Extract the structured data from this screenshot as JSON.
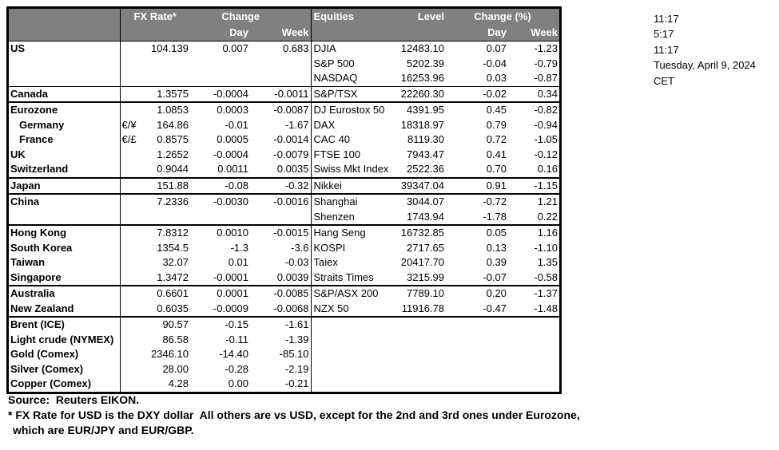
{
  "table": {
    "headers": {
      "fx_rate": "FX Rate*",
      "change": "Change",
      "day": "Day",
      "week": "Week",
      "equities": "Equities",
      "level": "Level",
      "change_pct": "Change (%)"
    },
    "rows": [
      {
        "country": "US",
        "pair": "",
        "fx": "104.139",
        "fx_day": "0.007",
        "fx_week": "0.683",
        "equity": "DJIA",
        "level": "12483.10",
        "eq_day": "0.07",
        "eq_week": "-1.23",
        "indent": false,
        "sep": "none"
      },
      {
        "country": "",
        "pair": "",
        "fx": "",
        "fx_day": "",
        "fx_week": "",
        "equity": "S&P 500",
        "level": "5202.39",
        "eq_day": "-0.04",
        "eq_week": "-0.79",
        "indent": false,
        "sep": "none"
      },
      {
        "country": "",
        "pair": "",
        "fx": "",
        "fx_day": "",
        "fx_week": "",
        "equity": "NASDAQ",
        "level": "16253.96",
        "eq_day": "0.03",
        "eq_week": "-0.87",
        "indent": false,
        "sep": "none"
      },
      {
        "country": "Canada",
        "pair": "",
        "fx": "1.3575",
        "fx_day": "-0.0004",
        "fx_week": "-0.0011",
        "equity": "S&P/TSX",
        "level": "22260.30",
        "eq_day": "-0.02",
        "eq_week": "0.34",
        "indent": false,
        "sep": "thin"
      },
      {
        "country": "Eurozone",
        "pair": "",
        "fx": "1.0853",
        "fx_day": "0.0003",
        "fx_week": "-0.0087",
        "equity": "DJ Eurostox 50",
        "level": "4391.95",
        "eq_day": "0.45",
        "eq_week": "-0.82",
        "indent": false,
        "sep": "thick"
      },
      {
        "country": "Germany",
        "pair": "€/¥",
        "fx": "164.86",
        "fx_day": "-0.01",
        "fx_week": "-1.67",
        "equity": "DAX",
        "level": "18318.97",
        "eq_day": "0.79",
        "eq_week": "-0.94",
        "indent": true,
        "sep": "none"
      },
      {
        "country": "France",
        "pair": "€/£",
        "fx": "0.8575",
        "fx_day": "0.0005",
        "fx_week": "-0.0014",
        "equity": "CAC 40",
        "level": "8119.30",
        "eq_day": "0.72",
        "eq_week": "-1.05",
        "indent": true,
        "sep": "none"
      },
      {
        "country": "UK",
        "pair": "",
        "fx": "1.2652",
        "fx_day": "-0.0004",
        "fx_week": "-0.0079",
        "equity": "FTSE 100",
        "level": "7943.47",
        "eq_day": "0.41",
        "eq_week": "-0.12",
        "indent": false,
        "sep": "none"
      },
      {
        "country": "Switzerland",
        "pair": "",
        "fx": "0.9044",
        "fx_day": "0.0011",
        "fx_week": "0.0035",
        "equity": "Swiss Mkt Index",
        "level": "2522.36",
        "eq_day": "0.70",
        "eq_week": "0.16",
        "indent": false,
        "sep": "none"
      },
      {
        "country": "Japan",
        "pair": "",
        "fx": "151.88",
        "fx_day": "-0.08",
        "fx_week": "-0.32",
        "equity": "Nikkei",
        "level": "39347.04",
        "eq_day": "0.91",
        "eq_week": "-1.15",
        "indent": false,
        "sep": "thick"
      },
      {
        "country": "China",
        "pair": "",
        "fx": "7.2336",
        "fx_day": "-0.0030",
        "fx_week": "-0.0016",
        "equity": "Shanghai",
        "level": "3044.07",
        "eq_day": "-0.72",
        "eq_week": "1.21",
        "indent": false,
        "sep": "thick"
      },
      {
        "country": "",
        "pair": "",
        "fx": "",
        "fx_day": "",
        "fx_week": "",
        "equity": "Shenzen",
        "level": "1743.94",
        "eq_day": "-1.78",
        "eq_week": "0.22",
        "indent": false,
        "sep": "none"
      },
      {
        "country": "Hong Kong",
        "pair": "",
        "fx": "7.8312",
        "fx_day": "0.0010",
        "fx_week": "-0.0015",
        "equity": "Hang Seng",
        "level": "16732.85",
        "eq_day": "0.05",
        "eq_week": "1.16",
        "indent": false,
        "sep": "thick"
      },
      {
        "country": "South Korea",
        "pair": "",
        "fx": "1354.5",
        "fx_day": "-1.3",
        "fx_week": "-3.6",
        "equity": "KOSPI",
        "level": "2717.65",
        "eq_day": "0.13",
        "eq_week": "-1.10",
        "indent": false,
        "sep": "none"
      },
      {
        "country": "Taiwan",
        "pair": "",
        "fx": "32.07",
        "fx_day": "0.01",
        "fx_week": "-0.03",
        "equity": "Taiex",
        "level": "20417.70",
        "eq_day": "0.39",
        "eq_week": "1.35",
        "indent": false,
        "sep": "none"
      },
      {
        "country": "Singapore",
        "pair": "",
        "fx": "1.3472",
        "fx_day": "-0.0001",
        "fx_week": "0.0039",
        "equity": "Straits Times",
        "level": "3215.99",
        "eq_day": "-0.07",
        "eq_week": "-0.58",
        "indent": false,
        "sep": "none"
      },
      {
        "country": "Australia",
        "pair": "",
        "fx": "0.6601",
        "fx_day": "0.0001",
        "fx_week": "-0.0085",
        "equity": "S&P/ASX  200",
        "level": "7789.10",
        "eq_day": "0.20",
        "eq_week": "-1.37",
        "indent": false,
        "sep": "thick"
      },
      {
        "country": "New Zealand",
        "pair": "",
        "fx": "0.6035",
        "fx_day": "-0.0009",
        "fx_week": "-0.0068",
        "equity": "NZX 50",
        "level": "11916.78",
        "eq_day": "-0.47",
        "eq_week": "-1.48",
        "indent": false,
        "sep": "none"
      },
      {
        "country": "Brent (ICE)",
        "pair": "",
        "fx": "90.57",
        "fx_day": "-0.15",
        "fx_week": "-1.61",
        "equity": "",
        "level": "",
        "eq_day": "",
        "eq_week": "",
        "indent": false,
        "sep": "thick"
      },
      {
        "country": "Light crude (NYMEX)",
        "pair": "",
        "fx": "86.58",
        "fx_day": "-0.11",
        "fx_week": "-1.39",
        "equity": "",
        "level": "",
        "eq_day": "",
        "eq_week": "",
        "indent": false,
        "sep": "none"
      },
      {
        "country": "Gold (Comex)",
        "pair": "",
        "fx": "2346.10",
        "fx_day": "-14.40",
        "fx_week": "-85.10",
        "equity": "",
        "level": "",
        "eq_day": "",
        "eq_week": "",
        "indent": false,
        "sep": "none"
      },
      {
        "country": "Silver (Comex)",
        "pair": "",
        "fx": "28.00",
        "fx_day": "-0.28",
        "fx_week": "-2.19",
        "equity": "",
        "level": "",
        "eq_day": "",
        "eq_week": "",
        "indent": false,
        "sep": "none"
      },
      {
        "country": "Copper (Comex)",
        "pair": "",
        "fx": "4.28",
        "fx_day": "0.00",
        "fx_week": "-0.21",
        "equity": "",
        "level": "",
        "eq_day": "",
        "eq_week": "",
        "indent": false,
        "sep": "none"
      }
    ]
  },
  "times": [
    "11:17",
    "5:17",
    "11:17",
    "Tuesday, April 9, 2024",
    "CET"
  ],
  "footer": {
    "source": "Source:  Reuters EIKON.",
    "note1": "* FX Rate for USD is the DXY dollar  All others are vs USD, except for the 2nd and 3rd ones under Eurozone,",
    "note2": "which are EUR/JPY and EUR/GBP."
  },
  "colors": {
    "header_bg": "#808080",
    "header_text": "#ffffff",
    "border": "#000000",
    "text": "#000000",
    "background": "#ffffff"
  }
}
